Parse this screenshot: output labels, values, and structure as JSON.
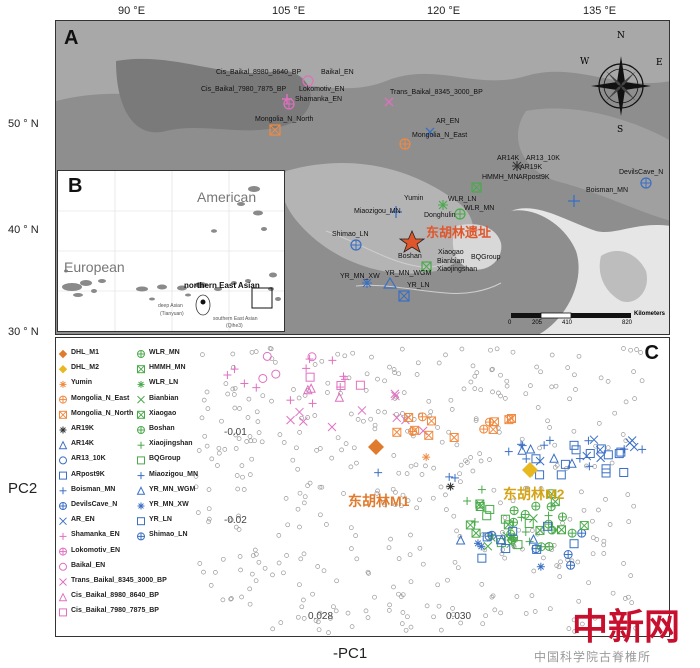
{
  "map": {
    "panel_label": "A",
    "top_coords": [
      "90 °E",
      "105 °E",
      "120 °E",
      "135 °E"
    ],
    "left_coords": [
      "50 ° N",
      "40 ° N",
      "30 ° N"
    ],
    "site_labels": [
      "Cis_Baikal_8980_8640_BP",
      "Baikal_EN",
      "Cis_Baikal_7980_7875_BP",
      "Lokomotiv_EN",
      "Shamanka_EN",
      "Trans_Baikal_8345_3000_BP",
      "Mongolia_N_North",
      "AR_EN",
      "Mongolia_N_East",
      "AR14K",
      "AR13_10K",
      "AR19K",
      "HMMH_MN",
      "ARpost9K",
      "DevilsCave_N",
      "Boisman_MN",
      "Yumin",
      "WLR_LN",
      "WLR_MN",
      "Miaozigou_MN",
      "Donghulin",
      "Shimao_LN",
      "Xiaogao",
      "Bianbian",
      "BQGroup",
      "Boshan",
      "Xiaojingshan",
      "YR_MN_XW",
      "YR_MN_WGM",
      "YR_LN"
    ],
    "target_site": "东胡林遗址",
    "compass": {
      "n": "N",
      "s": "S",
      "e": "E",
      "w": "W"
    },
    "scale": {
      "ticks": [
        "0",
        "205",
        "410",
        "820"
      ],
      "unit": "Kilometers"
    }
  },
  "inset": {
    "panel_label": "B",
    "labels": [
      "American",
      "European",
      "northern East Asian",
      "deep Asian",
      "(Tianyuan)",
      "southern East Asian",
      "(Qihe3)"
    ]
  },
  "pca": {
    "panel_label": "C",
    "x_label": "-PC1",
    "y_label": "PC2",
    "x_ticks": [
      "0.028",
      "0.030"
    ],
    "y_ticks": [
      "-0.01",
      "-0.02"
    ],
    "annotations": [
      "东胡林M1",
      "东胡林M2"
    ],
    "legend_left": [
      {
        "name": "DHL_M1",
        "color": "#e07a2c",
        "symbol": "diamond"
      },
      {
        "name": "DHL_M2",
        "color": "#e8b820",
        "symbol": "diamond"
      },
      {
        "name": "Yumin",
        "color": "#f08a40",
        "symbol": "asterisk"
      },
      {
        "name": "Mongolia_N_East",
        "color": "#f08a40",
        "symbol": "circle-plus"
      },
      {
        "name": "Mongolia_N_North",
        "color": "#f08a40",
        "symbol": "square-x"
      },
      {
        "name": "AR19K",
        "color": "#333333",
        "symbol": "asterisk"
      },
      {
        "name": "AR14K",
        "color": "#3a6fc4",
        "symbol": "triangle"
      },
      {
        "name": "AR13_10K",
        "color": "#3a6fc4",
        "symbol": "circle"
      },
      {
        "name": "ARpost9K",
        "color": "#3a6fc4",
        "symbol": "square"
      },
      {
        "name": "Boisman_MN",
        "color": "#3a6fc4",
        "symbol": "plus"
      },
      {
        "name": "DevilsCave_N",
        "color": "#3a6fc4",
        "symbol": "circle-plus"
      },
      {
        "name": "AR_EN",
        "color": "#3a6fc4",
        "symbol": "x"
      },
      {
        "name": "Shamanka_EN",
        "color": "#e070c0",
        "symbol": "plus"
      },
      {
        "name": "Lokomotiv_EN",
        "color": "#e070c0",
        "symbol": "circle-plus"
      },
      {
        "name": "Baikal_EN",
        "color": "#e070c0",
        "symbol": "circle"
      },
      {
        "name": "Trans_Baikal_8345_3000_BP",
        "color": "#e070c0",
        "symbol": "x"
      },
      {
        "name": "Cis_Baikal_8980_8640_BP",
        "color": "#e070c0",
        "symbol": "triangle"
      },
      {
        "name": "Cis_Baikal_7980_7875_BP",
        "color": "#e070c0",
        "symbol": "square"
      }
    ],
    "legend_right": [
      {
        "name": "WLR_MN",
        "color": "#4aaa4a",
        "symbol": "circle-plus"
      },
      {
        "name": "HMMH_MN",
        "color": "#4aaa4a",
        "symbol": "square-x"
      },
      {
        "name": "WLR_LN",
        "color": "#4aaa4a",
        "symbol": "asterisk"
      },
      {
        "name": "Bianbian",
        "color": "#4aaa4a",
        "symbol": "x"
      },
      {
        "name": "Xiaogao",
        "color": "#4aaa4a",
        "symbol": "square-x"
      },
      {
        "name": "Boshan",
        "color": "#4aaa4a",
        "symbol": "circle-plus"
      },
      {
        "name": "Xiaojingshan",
        "color": "#4aaa4a",
        "symbol": "plus"
      },
      {
        "name": "BQGroup",
        "color": "#4aaa4a",
        "symbol": "square"
      },
      {
        "name": "Miaozigou_MN",
        "color": "#3a6fc4",
        "symbol": "plus"
      },
      {
        "name": "YR_MN_WGM",
        "color": "#3a6fc4",
        "symbol": "triangle"
      },
      {
        "name": "YR_MN_XW",
        "color": "#3a6fc4",
        "symbol": "asterisk"
      },
      {
        "name": "YR_LN",
        "color": "#3a6fc4",
        "symbol": "square"
      },
      {
        "name": "Shimao_LN",
        "color": "#3a6fc4",
        "symbol": "circle-plus"
      }
    ]
  },
  "watermark": {
    "logo": "中新网",
    "url": "中国科学院古脊椎所"
  }
}
